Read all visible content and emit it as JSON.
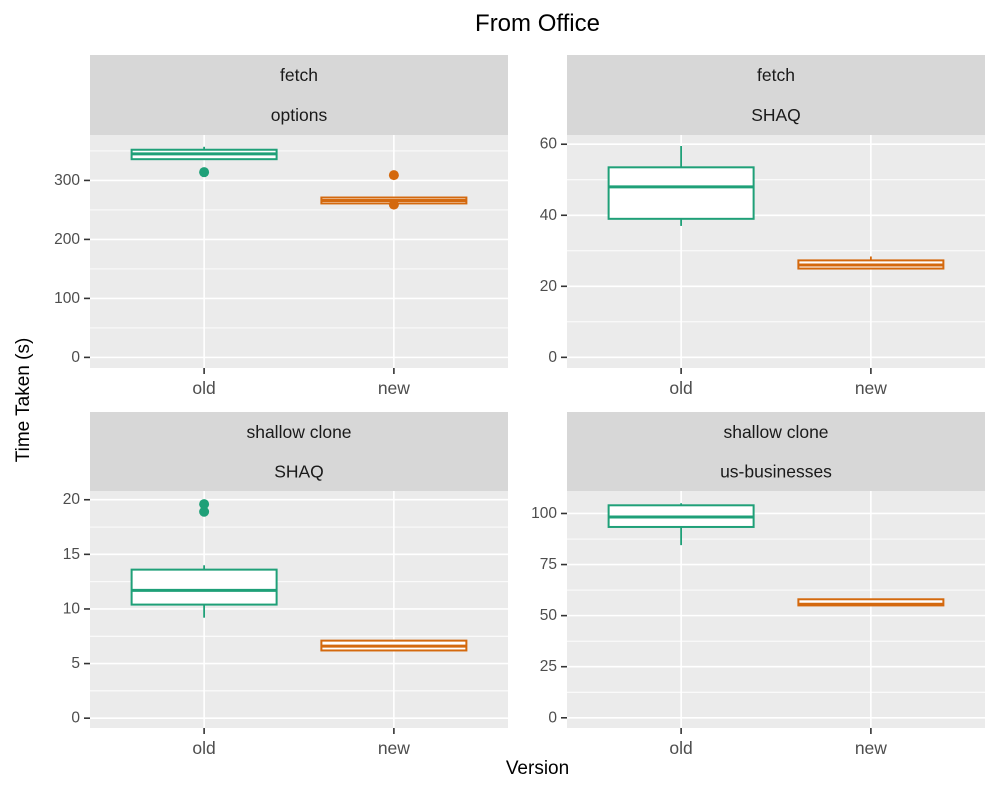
{
  "chart_data": {
    "type": "boxplot",
    "title": "From Office",
    "xlabel": "Version",
    "ylabel": "Time Taken (s)",
    "categories": [
      "old",
      "new"
    ],
    "legend": "none",
    "grid": "on",
    "series_colors": {
      "old": "#1fa078",
      "new": "#d4690e"
    },
    "facets": [
      {
        "label_line1": "fetch",
        "label_line2": "options",
        "grid_pos": {
          "row": 0,
          "col": 0
        },
        "ylim": [
          -18,
          377
        ],
        "yticks": [
          0,
          100,
          200,
          300
        ],
        "boxes": [
          {
            "category": "old",
            "whisker_low": 336,
            "q1": 336,
            "median": 345,
            "q3": 352,
            "whisker_high": 357,
            "outliers": [
              314
            ]
          },
          {
            "category": "new",
            "whisker_low": 261,
            "q1": 261,
            "median": 266,
            "q3": 271,
            "whisker_high": 272,
            "outliers": [
              309,
              259
            ]
          }
        ]
      },
      {
        "label_line1": "fetch",
        "label_line2": "SHAQ",
        "grid_pos": {
          "row": 0,
          "col": 1
        },
        "ylim": [
          -3,
          62.6
        ],
        "yticks": [
          0,
          20,
          40,
          60
        ],
        "boxes": [
          {
            "category": "old",
            "whisker_low": 37,
            "q1": 39,
            "median": 48,
            "q3": 53.5,
            "whisker_high": 59.5,
            "outliers": []
          },
          {
            "category": "new",
            "whisker_low": 25,
            "q1": 25,
            "median": 26,
            "q3": 27.3,
            "whisker_high": 28.4,
            "outliers": []
          }
        ]
      },
      {
        "label_line1": "shallow clone",
        "label_line2": "SHAQ",
        "grid_pos": {
          "row": 1,
          "col": 0
        },
        "ylim": [
          -0.9,
          20.8
        ],
        "yticks": [
          0,
          5,
          10,
          15,
          20
        ],
        "boxes": [
          {
            "category": "old",
            "whisker_low": 9.2,
            "q1": 10.4,
            "median": 11.7,
            "q3": 13.6,
            "whisker_high": 14,
            "outliers": [
              18.9,
              19.6
            ]
          },
          {
            "category": "new",
            "whisker_low": 6.2,
            "q1": 6.2,
            "median": 6.6,
            "q3": 7.1,
            "whisker_high": 7.1,
            "outliers": []
          }
        ]
      },
      {
        "label_line1": "shallow clone",
        "label_line2": "us-businesses",
        "grid_pos": {
          "row": 1,
          "col": 1
        },
        "ylim": [
          -5,
          111
        ],
        "yticks": [
          0,
          25,
          50,
          75,
          100
        ],
        "boxes": [
          {
            "category": "old",
            "whisker_low": 84.5,
            "q1": 93.4,
            "median": 98.3,
            "q3": 104,
            "whisker_high": 105,
            "outliers": []
          },
          {
            "category": "new",
            "whisker_low": 55,
            "q1": 55,
            "median": 55.6,
            "q3": 58,
            "whisker_high": 58.3,
            "outliers": []
          }
        ]
      }
    ],
    "theme_colors": {
      "panel_bg": "#ebebeb",
      "strip_bg": "#d7d7d7",
      "gridline": "#ffffff",
      "tick_text": "#4d4d4d",
      "strip_text": "#1a1a1a",
      "tick_mark": "#333333",
      "background": "#ffffff"
    }
  }
}
